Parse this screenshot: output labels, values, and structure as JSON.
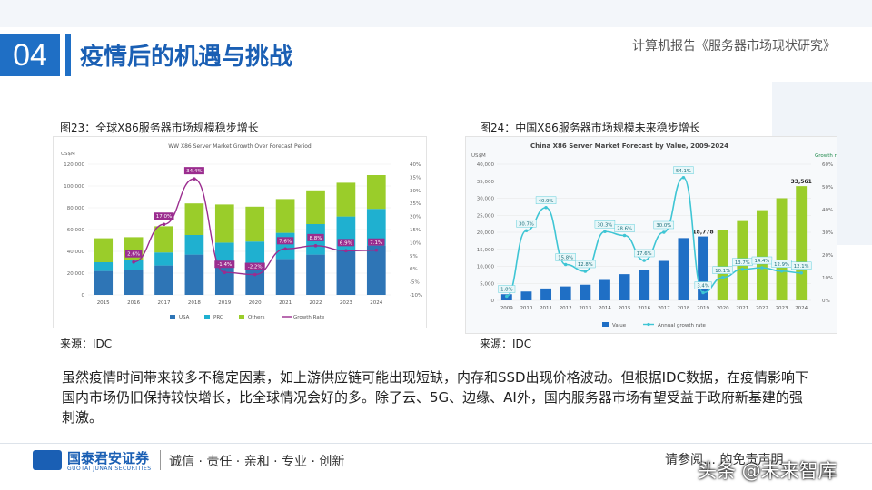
{
  "header": {
    "section_number": "04",
    "title": "疫情后的机遇与挑战",
    "report_name": "计算机报告《服务器市场现状研究》"
  },
  "figure_left": {
    "caption": "图23：全球X86服务器市场规模稳步增长",
    "source": "来源：IDC"
  },
  "figure_right": {
    "caption": "图24：中国X86服务器市场规模未来稳步增长",
    "source": "来源：IDC"
  },
  "body_text": "虽然疫情时间带来较多不稳定因素，如上游供应链可能出现短缺，内存和SSD出现价格波动。但根据IDC数据，在疫情影响下国内市场仍旧保持较快增长，比全球情况会好的多。除了云、5G、边缘、AI外，国内服务器市场有望受益于政府新基建的强刺激。",
  "footer": {
    "logo_cn": "国泰君安证券",
    "logo_en": "GUOTAI JUNAN SECURITIES",
    "slogan": "诚信 · 责任 · 亲和 · 专业 · 创新",
    "disclaimer": "请参阅… 的免责声明",
    "watermark": "头条 @未来智库"
  },
  "colors": {
    "accent_blue": "#1f6fc5",
    "usa": "#2e75b6",
    "prc": "#1fb0d0",
    "others": "#9acd2a",
    "growth_rate": "#9b2d8f",
    "china_value": "#1f6fc5",
    "china_forecast": "#9acd2a",
    "china_growth": "#3ec5d4"
  },
  "chart_data": [
    {
      "type": "bar",
      "stacked": true,
      "title": "WW X86 Server Market Growth Over Forecast Period",
      "yunit": "US$M",
      "categories": [
        "2015",
        "2016",
        "2017",
        "2018",
        "2019",
        "2020",
        "2021",
        "2022",
        "2023",
        "2024"
      ],
      "series": [
        {
          "name": "USA",
          "values": [
            22000,
            23000,
            27000,
            37000,
            30000,
            29000,
            33000,
            37000,
            41000,
            45000
          ]
        },
        {
          "name": "PRC",
          "values": [
            8000,
            9000,
            12000,
            18000,
            18000,
            20000,
            24000,
            28000,
            31000,
            34000
          ]
        },
        {
          "name": "Others",
          "values": [
            22000,
            21000,
            24000,
            29000,
            35000,
            32000,
            31000,
            31000,
            31000,
            31000
          ]
        }
      ],
      "line_series": {
        "name": "Growth Rate",
        "values": [
          null,
          2.6,
          17.0,
          34.4,
          -1.4,
          -2.2,
          7.6,
          8.8,
          6.9,
          7.1
        ]
      },
      "data_labels": [
        "",
        "2.6%",
        "17.0%",
        "34.4%",
        "-1.4%",
        "-2.2%",
        "7.6%",
        "8.8%",
        "6.9%",
        "7.1%"
      ],
      "yticks": [
        "0",
        "20,000",
        "40,000",
        "60,000",
        "80,000",
        "100,000",
        "120,000"
      ],
      "y2ticks": [
        "-10%",
        "-5%",
        "0%",
        "5%",
        "10%",
        "15%",
        "20%",
        "25%",
        "30%",
        "35%",
        "40%"
      ],
      "ylim": [
        0,
        120000
      ],
      "y2lim": [
        -10,
        40
      ],
      "legend": [
        "USA",
        "PRC",
        "Others",
        "Growth Rate"
      ],
      "legend_position": "bottom"
    },
    {
      "type": "bar",
      "title": "China X86 Server Market Forecast by Value, 2009-2024",
      "yunit": "US$M",
      "y2unit": "Growth rate",
      "categories": [
        "2009",
        "2010",
        "2011",
        "2012",
        "2013",
        "2014",
        "2015",
        "2016",
        "2017",
        "2018",
        "2019",
        "2020",
        "2021",
        "2022",
        "2023",
        "2024"
      ],
      "series": [
        {
          "name": "Value",
          "values": [
            1800,
            2600,
            3500,
            4100,
            4600,
            6000,
            7700,
            9000,
            11600,
            18300,
            18778,
            20700,
            23300,
            26500,
            30000,
            33561
          ]
        }
      ],
      "forecast_from_index": 11,
      "line_series": {
        "name": "Annual growth rate",
        "values": [
          1.8,
          30.7,
          40.9,
          15.8,
          12.8,
          30.3,
          28.6,
          17.6,
          30.0,
          54.1,
          3.4,
          10.1,
          13.7,
          14.4,
          12.9,
          12.1
        ]
      },
      "data_labels": [
        "1.8%",
        "30.7%",
        "40.9%",
        "15.8%",
        "12.8%",
        "30.3%",
        "28.6%",
        "17.6%",
        "30.0%",
        "54.1%",
        "3.4%",
        "10.1%",
        "13.7%",
        "14.4%",
        "12.9%",
        "12.1%"
      ],
      "value_labels": {
        "2019": "18,778",
        "2024": "33,561"
      },
      "yticks": [
        "0",
        "5,000",
        "10,000",
        "15,000",
        "20,000",
        "25,000",
        "30,000",
        "35,000",
        "40,000"
      ],
      "y2ticks": [
        "0%",
        "10%",
        "20%",
        "30%",
        "40%",
        "50%",
        "60%"
      ],
      "ylim": [
        0,
        40000
      ],
      "y2lim": [
        0,
        60
      ],
      "legend": [
        "Value",
        "Annual growth rate"
      ],
      "legend_position": "bottom"
    }
  ]
}
